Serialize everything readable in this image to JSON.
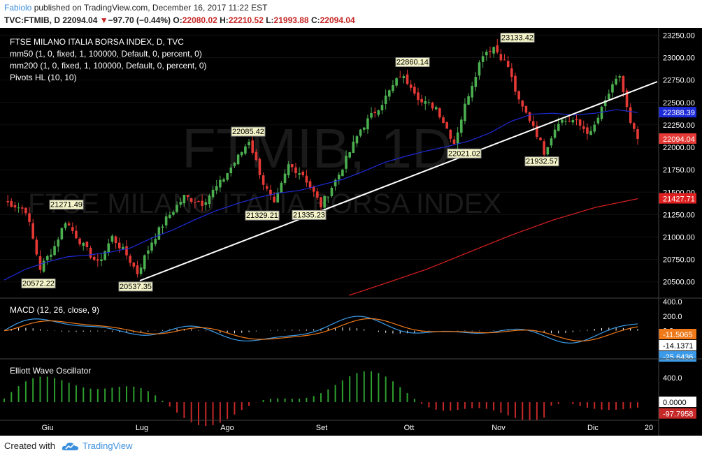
{
  "header": {
    "author": "Fabiolo",
    "published_text": " published on TradingView.com, December 16, 2017 11:22 EST",
    "symbol_line": "TVC:FTMIB, D",
    "last": "22094.04",
    "change": "−97.70 (−0.44%)",
    "o_label": "O:",
    "o_val": "22080.02",
    "h_label": "H:",
    "h_val": "22210.52",
    "l_label": "L:",
    "l_val": "21993.88",
    "c_label": "C:",
    "c_val": "22094.04"
  },
  "footer": {
    "created_with": "Created with",
    "brand": "TradingView"
  },
  "colors": {
    "background": "#000000",
    "candle_up": "#4caf50",
    "candle_down": "#e53935",
    "mm50": "#1e2bd9",
    "mm200": "#e02020",
    "trendline": "#ffffff",
    "macd": "#3c9be8",
    "signal": "#f07a1a",
    "ewo_pos": "#2e9e2e",
    "ewo_neg": "#c62828"
  },
  "chart_data": [
    {
      "type": "candlestick",
      "title": "FTSE MILANO ITALIA BORSA INDEX, D, TVC",
      "watermark_symbol": "FTMIB, 1D",
      "watermark_name": "FTSE MILANO ITALIA BORSA INDEX",
      "indicators": [
        "mm50 (1, 0, fixed, 1, 100000, Default, 0, percent, 0)",
        "mm200 (1, 0, fixed, 1, 100000, Default, 0, percent, 0)",
        "Pivots HL (10, 10)"
      ],
      "ylim": [
        20350,
        23300
      ],
      "yticks": [
        20500,
        20750,
        21000,
        21250,
        21500,
        21750,
        22000,
        22250,
        22500,
        22750,
        23000,
        23250
      ],
      "xticks": [
        "Giu",
        "Lug",
        "Ago",
        "Set",
        "Ott",
        "Nov",
        "Dic",
        "20"
      ],
      "price_tags": [
        {
          "label": "22388.39",
          "value": 22388.39,
          "color": "#1e2bd9"
        },
        {
          "label": "22094.04",
          "value": 22094.04,
          "color": "#e53935"
        },
        {
          "label": "21427.71",
          "value": 21427.71,
          "color": "#e02020"
        }
      ],
      "pivot_labels": [
        {
          "text": "21271.49",
          "value": 21271.49
        },
        {
          "text": "20572.22",
          "value": 20572.22
        },
        {
          "text": "20537.35",
          "value": 20537.35
        },
        {
          "text": "22085.42",
          "value": 22085.42
        },
        {
          "text": "21329.21",
          "value": 21329.21
        },
        {
          "text": "21335.23",
          "value": 21335.23
        },
        {
          "text": "22860.14",
          "value": 22860.14
        },
        {
          "text": "22021.02",
          "value": 22021.02
        },
        {
          "text": "23133.42",
          "value": 23133.42
        },
        {
          "text": "21932.57",
          "value": 21932.57
        }
      ],
      "series": [
        {
          "name": "mm50",
          "points": [
            [
              0,
              20520
            ],
            [
              30,
              20640
            ],
            [
              60,
              20720
            ],
            [
              90,
              20780
            ],
            [
              120,
              20800
            ],
            [
              150,
              20830
            ],
            [
              180,
              20880
            ],
            [
              210,
              20990
            ],
            [
              240,
              21080
            ],
            [
              270,
              21190
            ],
            [
              300,
              21290
            ],
            [
              330,
              21370
            ],
            [
              360,
              21440
            ],
            [
              390,
              21490
            ],
            [
              420,
              21520
            ],
            [
              450,
              21580
            ],
            [
              480,
              21640
            ],
            [
              510,
              21730
            ],
            [
              540,
              21830
            ],
            [
              570,
              21900
            ],
            [
              600,
              21960
            ],
            [
              630,
              22010
            ],
            [
              660,
              22070
            ],
            [
              690,
              22160
            ],
            [
              720,
              22290
            ],
            [
              750,
              22370
            ],
            [
              780,
              22380
            ],
            [
              810,
              22360
            ],
            [
              840,
              22380
            ],
            [
              870,
              22420
            ],
            [
              900,
              22388
            ]
          ]
        },
        {
          "name": "mm200",
          "points": [
            [
              490,
              20350
            ],
            [
              540,
              20480
            ],
            [
              600,
              20640
            ],
            [
              660,
              20830
            ],
            [
              720,
              21020
            ],
            [
              780,
              21190
            ],
            [
              840,
              21330
            ],
            [
              900,
              21427
            ]
          ]
        }
      ]
    },
    {
      "type": "line",
      "title": "MACD (12, 26, close, 9)",
      "ylim": [
        -350,
        400
      ],
      "yticks": [
        400,
        200,
        0
      ],
      "tags": [
        {
          "label": "-11.5065",
          "value": -11.5065,
          "color": "#f07a1a"
        },
        {
          "label": "-14.1371",
          "value": -14.1371,
          "color": "#ffffff"
        },
        {
          "label": "-25.6436",
          "value": -25.6436,
          "color": "#3c9be8"
        }
      ]
    },
    {
      "type": "bar",
      "title": "Elliott Wave Oscillator",
      "ylim": [
        -250,
        650
      ],
      "yticks": [
        400,
        0
      ],
      "tags": [
        {
          "label": "0.0000",
          "value": 0,
          "color": "#ffffff"
        },
        {
          "label": "-97.7958",
          "value": -97.7958,
          "color": "#c62828"
        }
      ]
    }
  ]
}
